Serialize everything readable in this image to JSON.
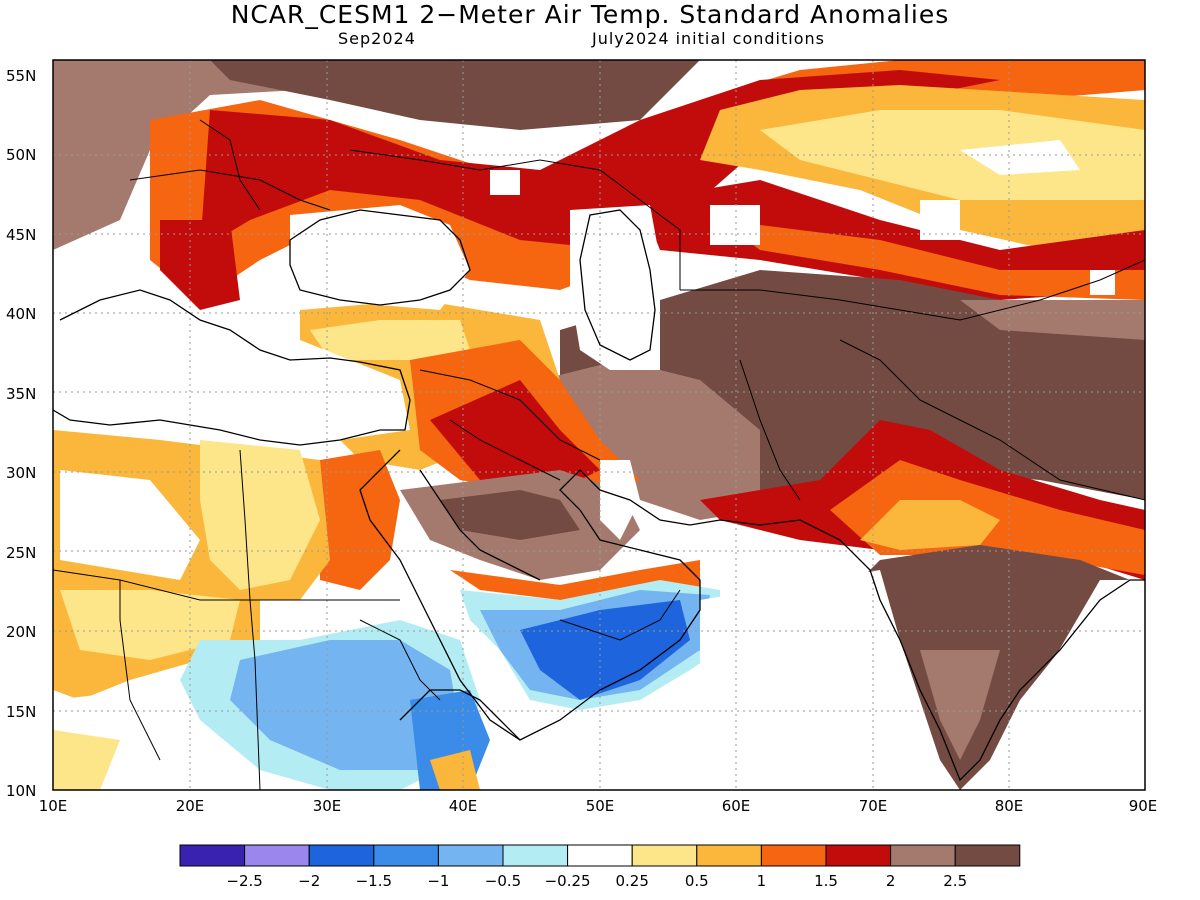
{
  "title": "NCAR_CESM1 2−Meter Air Temp. Standard Anomalies",
  "subtitle_left": "Sep2024",
  "subtitle_right": "July2024 initial conditions",
  "lat_labels": [
    "55N",
    "50N",
    "45N",
    "40N",
    "35N",
    "30N",
    "25N",
    "20N",
    "15N",
    "10N"
  ],
  "lon_labels": [
    "10E",
    "20E",
    "30E",
    "40E",
    "50E",
    "60E",
    "70E",
    "80E",
    "90E"
  ],
  "colorbar": {
    "colors": [
      "#3a22b0",
      "#9b86ee",
      "#1e64dc",
      "#3a8ce8",
      "#74b4f0",
      "#b4ecf4",
      "#ffffff",
      "#fde68a",
      "#fbb73c",
      "#f6650f",
      "#c20b0b",
      "#a57a6e",
      "#744b42"
    ],
    "labels": [
      "−2.5",
      "−2",
      "−1.5",
      "−1",
      "−0.5",
      "−0.25",
      "0.25",
      "0.5",
      "1",
      "1.5",
      "2",
      "2.5"
    ]
  },
  "legend_colors": {
    "warm_high": "#744b42",
    "warm_2": "#a57a6e",
    "red": "#c20b0b",
    "orange": "#f6650f",
    "light_orange": "#fbb73c",
    "yellow": "#fde68a",
    "cool_light": "#b4ecf4",
    "cool_mid": "#74b4f0",
    "cool_strong": "#1e64dc"
  }
}
